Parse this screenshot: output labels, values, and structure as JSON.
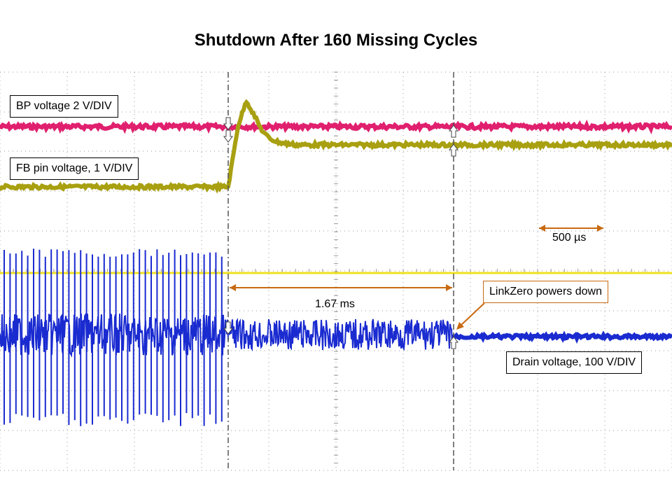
{
  "slide_title": "Shutdown After 160 Missing Cycles",
  "colors": {
    "bp_trace": "#e0206e",
    "fb_trace": "#a8a010",
    "drain_trace": "#1a2bd0",
    "ref_line": "#f0e020",
    "annotation": "#c86a12",
    "grid": "#9a9a9a",
    "cursor": "#555555"
  },
  "chart_data": {
    "type": "line",
    "title": "Shutdown After 160 Missing Cycles",
    "grid": true,
    "time_div": "500 µs",
    "series": [
      {
        "name": "BP voltage 2 V/DIV",
        "trace": "bp",
        "behavior": "flat"
      },
      {
        "name": "FB pin voltage, 1 V/DIV",
        "trace": "fb",
        "behavior": "step up at first cursor, overshoot peak, then settle"
      },
      {
        "name": "Drain voltage, 100 V/DIV",
        "trace": "drain",
        "behavior": "switching pulses, then noise, then flat after shutdown"
      }
    ],
    "measurement": {
      "label": "1.67 ms",
      "between": "cursor 1 and cursor 2"
    },
    "annotations": [
      {
        "text": "LinkZero powers down"
      },
      {
        "text": "500 µs"
      }
    ]
  },
  "labels": {
    "bp": "BP voltage 2 V/DIV",
    "fb": "FB pin voltage, 1 V/DIV",
    "drain": "Drain voltage, 100 V/DIV",
    "powers_down": "LinkZero powers down",
    "time_div": "500 µs",
    "interval": "1.67 ms"
  }
}
